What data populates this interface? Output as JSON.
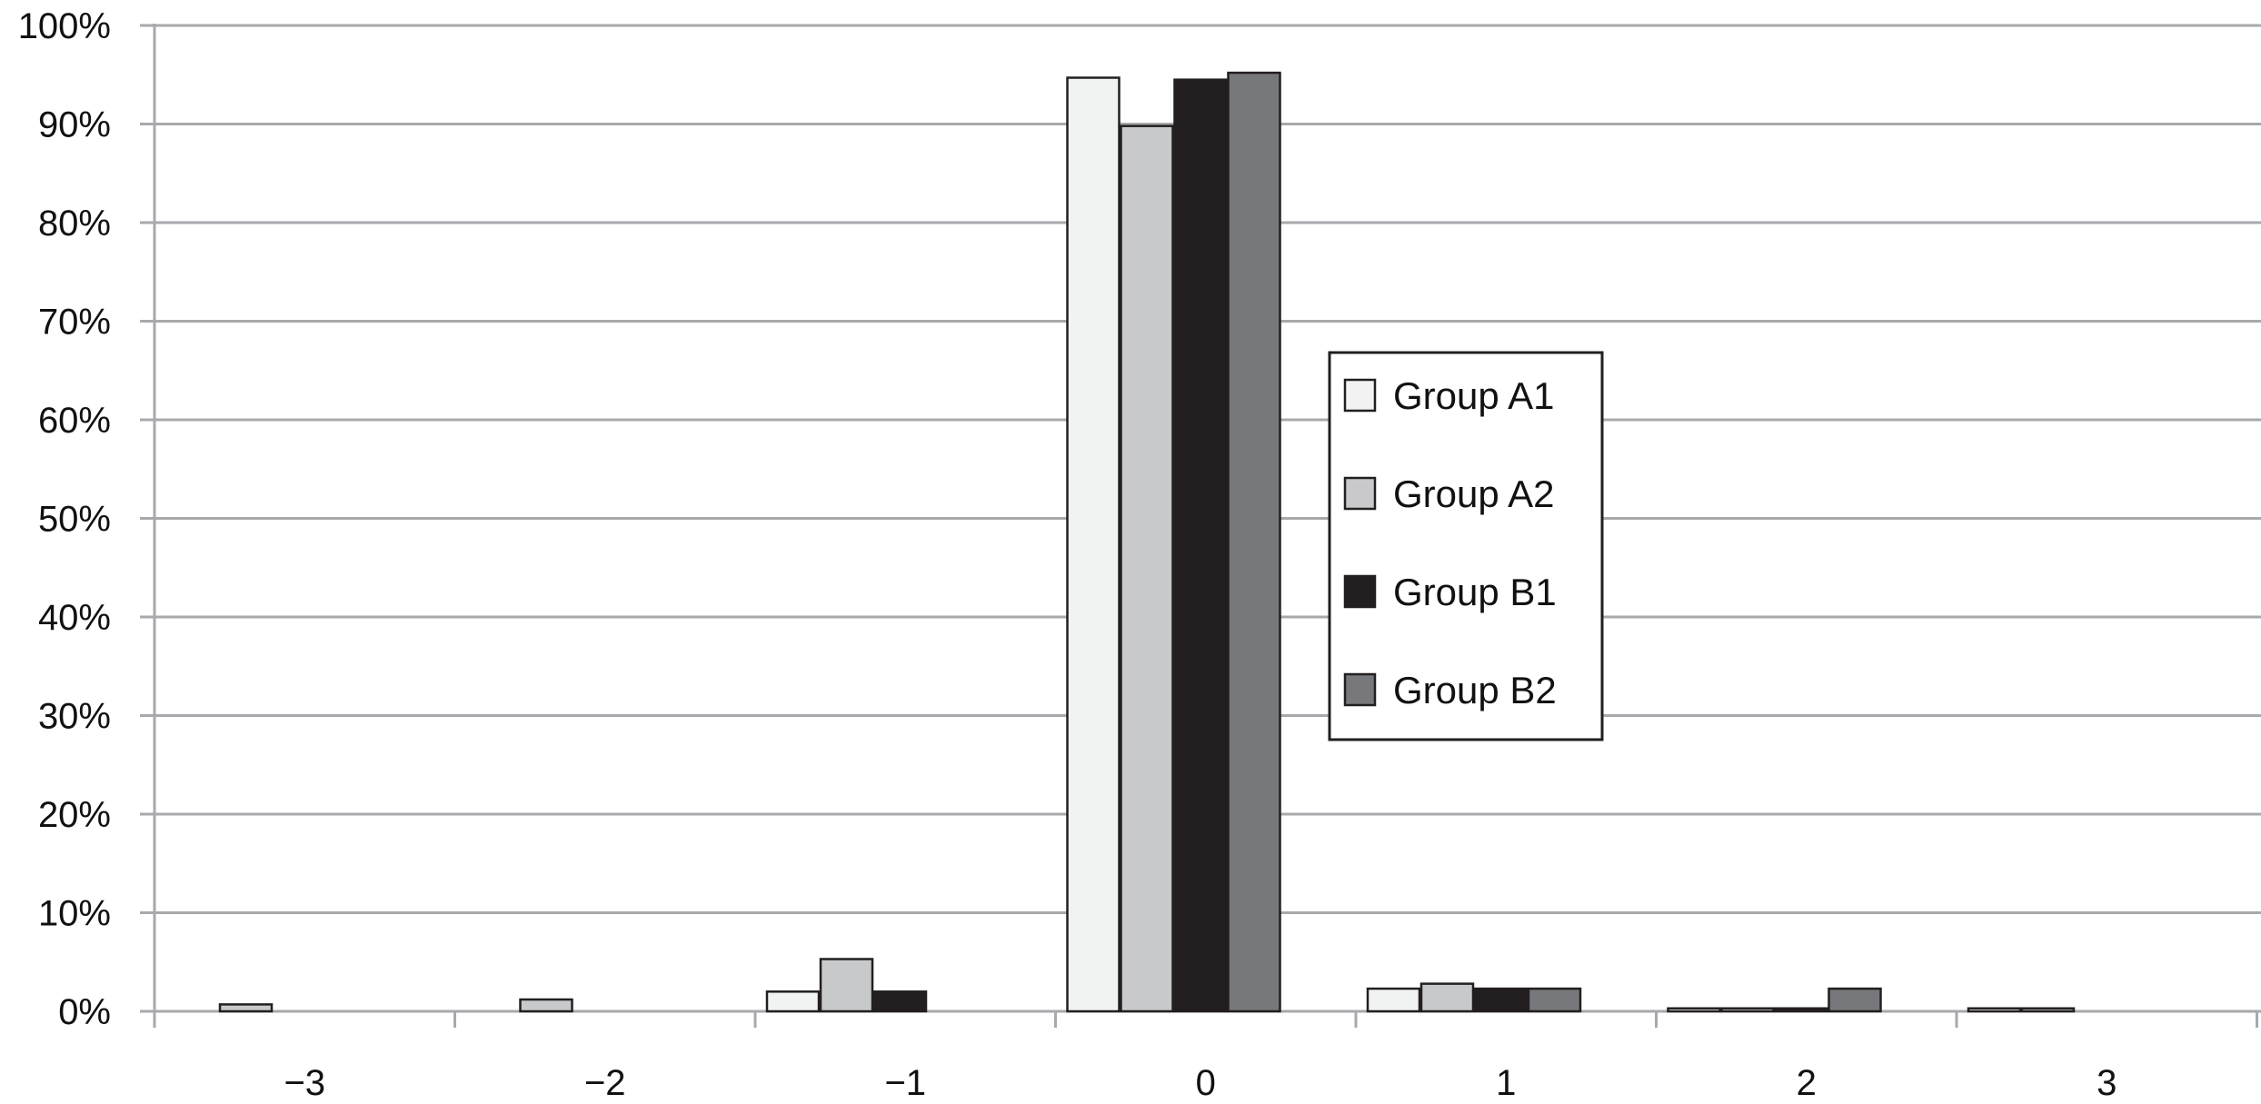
{
  "chart_data": {
    "type": "bar",
    "title": "",
    "xlabel": "",
    "ylabel": "",
    "categories": [
      "−3",
      "−2",
      "−1",
      "0",
      "1",
      "2",
      "3"
    ],
    "ylim": [
      0,
      100
    ],
    "yticks": [
      "0%",
      "10%",
      "20%",
      "30%",
      "40%",
      "50%",
      "60%",
      "70%",
      "80%",
      "90%",
      "100%"
    ],
    "grid": true,
    "legend_placement": "center-right",
    "series": [
      {
        "name": "Group A1",
        "color": "#f1f2f2",
        "values": [
          0,
          0,
          2.0,
          94.7,
          2.3,
          0.3,
          0.3
        ]
      },
      {
        "name": "Group A2",
        "color": "#c8c9cb",
        "values": [
          0.7,
          1.2,
          5.3,
          89.8,
          2.8,
          0.3,
          0.3
        ]
      },
      {
        "name": "Group B1",
        "color": "#231f20",
        "values": [
          0,
          0,
          2.0,
          94.5,
          2.3,
          0.3,
          0
        ]
      },
      {
        "name": "Group B2",
        "color": "#77787b",
        "values": [
          0,
          0,
          0,
          95.2,
          2.3,
          2.3,
          0
        ]
      }
    ]
  }
}
